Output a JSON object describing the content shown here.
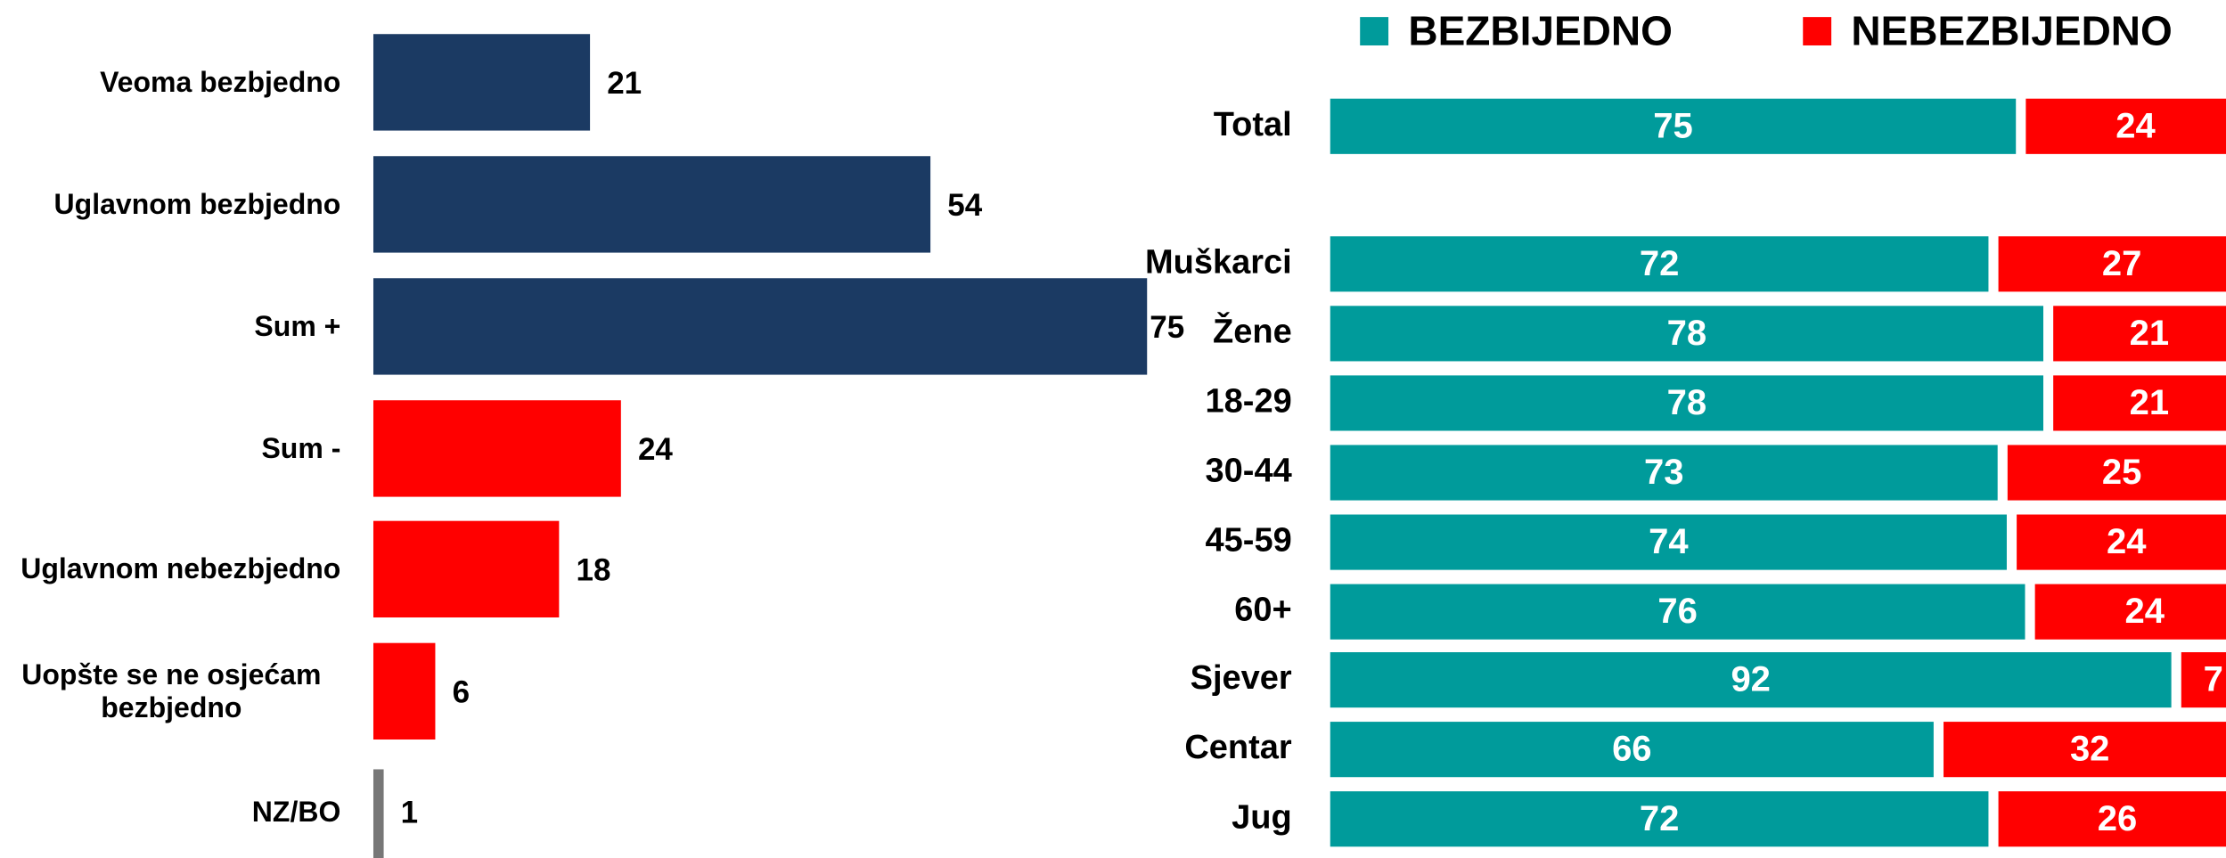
{
  "chart_data": [
    {
      "type": "bar",
      "orientation": "horizontal",
      "categories": [
        "Veoma bezbjedno",
        "Uglavnom bezbjedno",
        "Sum +",
        "Sum -",
        "Uglavnom nebezbjedno",
        "Uopšte se ne osjećam bezbjedno",
        "NZ/BO"
      ],
      "values": [
        21,
        54,
        75,
        24,
        18,
        6,
        1
      ],
      "colors": [
        "#1b3a63",
        "#1b3a63",
        "#1b3a63",
        "#ff0000",
        "#ff0000",
        "#ff0000",
        "#777777"
      ],
      "xlim": [
        0,
        75
      ]
    },
    {
      "type": "stacked_bar",
      "orientation": "horizontal",
      "categories": [
        "Total",
        "Muškarci",
        "Žene",
        "18-29",
        "30-44",
        "45-59",
        "60+",
        "Sjever",
        "Centar",
        "Jug"
      ],
      "series": [
        {
          "name": "BEZBIJEDNO",
          "color": "#009b9b",
          "values": [
            75,
            72,
            78,
            78,
            73,
            74,
            76,
            92,
            66,
            72
          ]
        },
        {
          "name": "NEBEZBIJEDNO",
          "color": "#ff0000",
          "values": [
            24,
            27,
            21,
            21,
            25,
            24,
            24,
            7,
            32,
            26
          ]
        }
      ],
      "xlim": [
        0,
        100
      ],
      "legend": "top"
    }
  ]
}
